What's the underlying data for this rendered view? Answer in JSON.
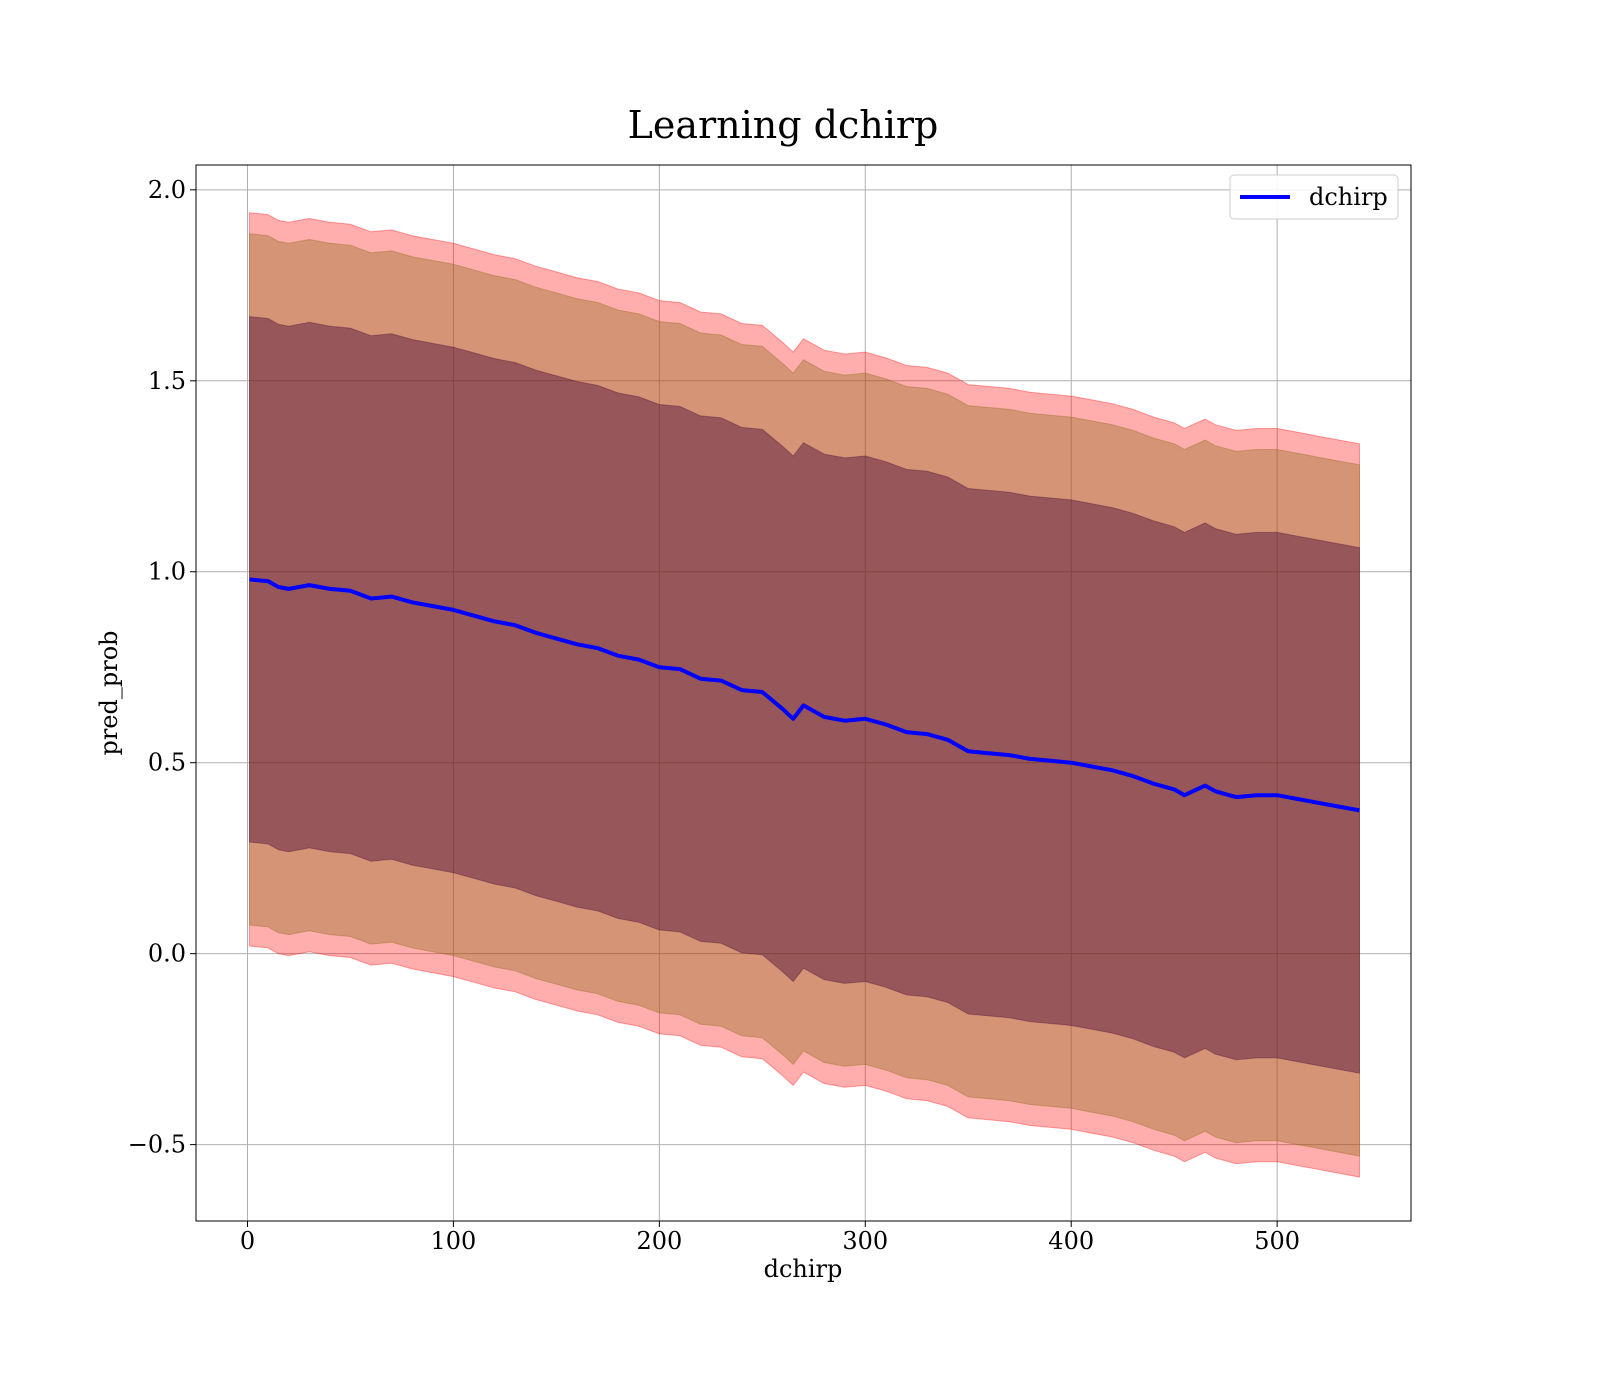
{
  "chart_data": {
    "type": "line",
    "title": "Learning dchirp",
    "xlabel": "dchirp",
    "ylabel": "pred_prob",
    "xlim": [
      -25,
      565
    ],
    "ylim": [
      -0.7,
      2.065
    ],
    "xticks": [
      0,
      100,
      200,
      300,
      400,
      500
    ],
    "yticks": [
      -0.5,
      0.0,
      0.5,
      1.0,
      1.5,
      2.0
    ],
    "xtick_labels": [
      "0",
      "100",
      "200",
      "300",
      "400",
      "500"
    ],
    "ytick_labels": [
      "−0.5",
      "0.0",
      "0.5",
      "1.0",
      "1.5",
      "2.0"
    ],
    "grid": true,
    "legend": {
      "placement": "upper right",
      "entries": [
        "dchirp"
      ]
    },
    "colors": {
      "line": "#0000ff",
      "band_outer": "#ff0000",
      "band_middle": "#8b6914",
      "band_inner": "#4b0a38"
    },
    "series": [
      {
        "name": "dchirp",
        "x": [
          1,
          10,
          15,
          20,
          30,
          40,
          50,
          60,
          70,
          80,
          90,
          100,
          110,
          120,
          130,
          140,
          150,
          160,
          170,
          180,
          190,
          200,
          210,
          220,
          230,
          240,
          250,
          260,
          265,
          270,
          280,
          290,
          300,
          310,
          320,
          330,
          340,
          350,
          360,
          370,
          380,
          390,
          400,
          410,
          420,
          430,
          440,
          450,
          455,
          465,
          470,
          480,
          490,
          500,
          510,
          520,
          530,
          540
        ],
        "y": [
          0.98,
          0.975,
          0.96,
          0.955,
          0.965,
          0.955,
          0.95,
          0.93,
          0.935,
          0.92,
          0.91,
          0.9,
          0.885,
          0.87,
          0.86,
          0.84,
          0.825,
          0.81,
          0.8,
          0.78,
          0.77,
          0.75,
          0.745,
          0.72,
          0.715,
          0.69,
          0.685,
          0.64,
          0.615,
          0.65,
          0.62,
          0.61,
          0.615,
          0.6,
          0.58,
          0.575,
          0.56,
          0.53,
          0.525,
          0.52,
          0.51,
          0.505,
          0.5,
          0.49,
          0.48,
          0.465,
          0.445,
          0.43,
          0.415,
          0.44,
          0.425,
          0.41,
          0.415,
          0.415,
          0.405,
          0.395,
          0.385,
          0.375
        ]
      }
    ],
    "bands": [
      {
        "name": "band_outer",
        "half_width": 0.96
      },
      {
        "name": "band_middle",
        "half_width": 0.905
      },
      {
        "name": "band_inner",
        "half_width": 0.688
      }
    ]
  }
}
